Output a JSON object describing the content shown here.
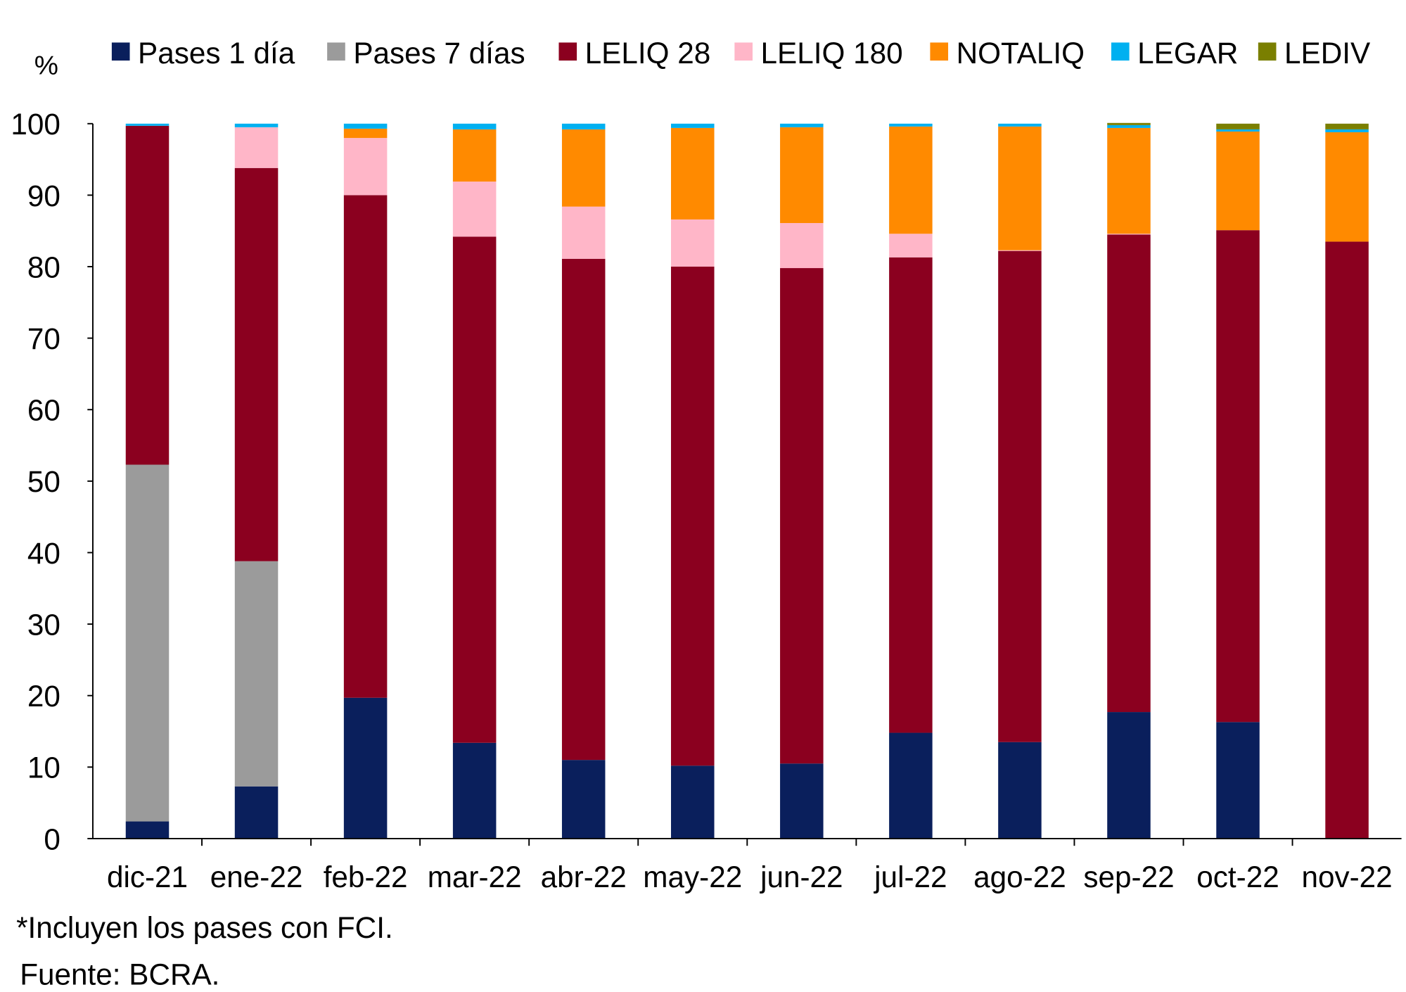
{
  "chart_data": {
    "type": "bar",
    "stacked": true,
    "ylabel": "%",
    "ylim": [
      0,
      100
    ],
    "yticks": [
      0,
      10,
      20,
      30,
      40,
      50,
      60,
      70,
      80,
      90,
      100
    ],
    "grid": false,
    "legend_placement": "top",
    "categories": [
      "dic-21",
      "ene-22",
      "feb-22",
      "mar-22",
      "abr-22",
      "may-22",
      "jun-22",
      "jul-22",
      "ago-22",
      "sep-22",
      "oct-22",
      "nov-22"
    ],
    "series": [
      {
        "name": "Pases 1 día",
        "color": "#0a1f5c",
        "values": [
          2.4,
          7.3,
          19.7,
          13.4,
          11.0,
          10.2,
          10.5,
          14.8,
          13.5,
          17.7,
          16.3,
          0
        ]
      },
      {
        "name": "Pases 7 días",
        "color": "#9b9b9b",
        "values": [
          49.9,
          31.5,
          0,
          0,
          0,
          0,
          0,
          0,
          0,
          0,
          0,
          0
        ]
      },
      {
        "name": "LELIQ 28",
        "color": "#8b001f",
        "values": [
          47.4,
          55.0,
          70.3,
          70.8,
          70.1,
          69.8,
          69.3,
          66.5,
          68.7,
          66.8,
          68.8,
          83.5
        ]
      },
      {
        "name": "LELIQ 180",
        "color": "#ffb6c8",
        "values": [
          0,
          5.7,
          8.0,
          7.7,
          7.3,
          6.6,
          6.3,
          3.3,
          0.1,
          0.1,
          0,
          0
        ]
      },
      {
        "name": "NOTALIQ",
        "color": "#ff8a00",
        "values": [
          0,
          0,
          1.3,
          7.3,
          10.8,
          12.8,
          13.4,
          15.0,
          17.3,
          14.8,
          13.8,
          15.3
        ]
      },
      {
        "name": "LEGAR",
        "color": "#00b0f0",
        "values": [
          0.3,
          0.5,
          0.7,
          0.8,
          0.8,
          0.6,
          0.5,
          0.4,
          0.4,
          0.4,
          0.3,
          0.4
        ]
      },
      {
        "name": "LEDIV",
        "color": "#7a7f00",
        "values": [
          0,
          0,
          0,
          0,
          0,
          0,
          0,
          0,
          0,
          0.3,
          0.8,
          0.8
        ]
      }
    ],
    "notes": [
      "*Incluyen los pases con FCI.",
      "Fuente: BCRA."
    ]
  }
}
